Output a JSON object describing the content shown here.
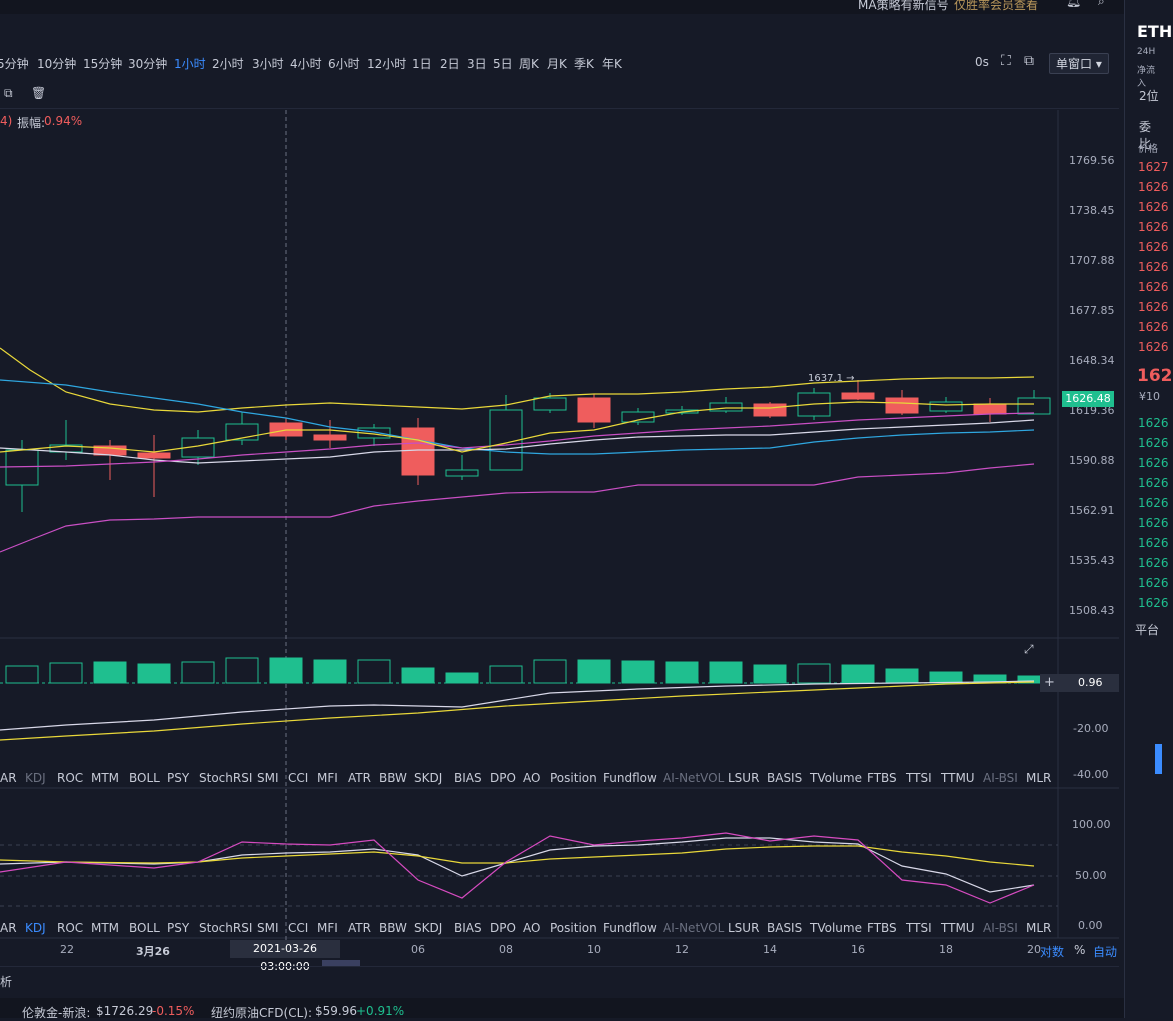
{
  "topbar": {
    "notice": "MA策略有新信号",
    "notice_link": "仅胜率会员查看"
  },
  "timeframes": [
    {
      "label": "5分钟",
      "active": false
    },
    {
      "label": "10分钟",
      "active": false
    },
    {
      "label": "15分钟",
      "active": false
    },
    {
      "label": "30分钟",
      "active": false
    },
    {
      "label": "1小时",
      "active": true
    },
    {
      "label": "2小时",
      "active": false
    },
    {
      "label": "3小时",
      "active": false
    },
    {
      "label": "4小时",
      "active": false
    },
    {
      "label": "6小时",
      "active": false
    },
    {
      "label": "12小时",
      "active": false
    },
    {
      "label": "1日",
      "active": false
    },
    {
      "label": "2日",
      "active": false
    },
    {
      "label": "3日",
      "active": false
    },
    {
      "label": "5日",
      "active": false
    },
    {
      "label": "周K",
      "active": false
    },
    {
      "label": "月K",
      "active": false
    },
    {
      "label": "季K",
      "active": false
    },
    {
      "label": "年K",
      "active": false
    }
  ],
  "toolbar": {
    "countdown": "0s",
    "window_mode": "单窗口"
  },
  "main_chart": {
    "info_prefix": "4)",
    "amplitude_label": "振幅:",
    "amplitude_value": "0.94%",
    "price_axis": [
      "1769.56",
      "1738.45",
      "1707.88",
      "1677.85",
      "1648.34",
      "1619.36",
      "1590.88",
      "1562.91",
      "1535.43",
      "1508.43"
    ],
    "last_price": "1626.48",
    "high_marker": "1637.1 →"
  },
  "volume_panel": {
    "value": "0.96",
    "axis": [
      "-20.00",
      "-40.00"
    ]
  },
  "indicators": [
    {
      "label": "AR",
      "state": "normal"
    },
    {
      "label": "KDJ",
      "state": "dim"
    },
    {
      "label": "ROC",
      "state": "normal"
    },
    {
      "label": "MTM",
      "state": "normal"
    },
    {
      "label": "BOLL",
      "state": "normal"
    },
    {
      "label": "PSY",
      "state": "normal"
    },
    {
      "label": "StochRSI",
      "state": "normal"
    },
    {
      "label": "SMI",
      "state": "normal"
    },
    {
      "label": "CCI",
      "state": "normal"
    },
    {
      "label": "MFI",
      "state": "normal"
    },
    {
      "label": "ATR",
      "state": "normal"
    },
    {
      "label": "BBW",
      "state": "normal"
    },
    {
      "label": "SKDJ",
      "state": "normal"
    },
    {
      "label": "BIAS",
      "state": "normal"
    },
    {
      "label": "DPO",
      "state": "normal"
    },
    {
      "label": "AO",
      "state": "normal"
    },
    {
      "label": "Position",
      "state": "normal"
    },
    {
      "label": "Fundflow",
      "state": "normal"
    },
    {
      "label": "AI-NetVOL",
      "state": "dim"
    },
    {
      "label": "LSUR",
      "state": "normal"
    },
    {
      "label": "BASIS",
      "state": "normal"
    },
    {
      "label": "TVolume",
      "state": "normal"
    },
    {
      "label": "FTBS",
      "state": "normal"
    },
    {
      "label": "TTSI",
      "state": "normal"
    },
    {
      "label": "TTMU",
      "state": "normal"
    },
    {
      "label": "AI-BSI",
      "state": "dim"
    },
    {
      "label": "MLR",
      "state": "normal"
    }
  ],
  "indicators2": [
    {
      "label": "AR",
      "state": "normal"
    },
    {
      "label": "KDJ",
      "state": "active"
    },
    {
      "label": "ROC",
      "state": "normal"
    },
    {
      "label": "MTM",
      "state": "normal"
    },
    {
      "label": "BOLL",
      "state": "normal"
    },
    {
      "label": "PSY",
      "state": "normal"
    },
    {
      "label": "StochRSI",
      "state": "normal"
    },
    {
      "label": "SMI",
      "state": "normal"
    },
    {
      "label": "CCI",
      "state": "normal"
    },
    {
      "label": "MFI",
      "state": "normal"
    },
    {
      "label": "ATR",
      "state": "normal"
    },
    {
      "label": "BBW",
      "state": "normal"
    },
    {
      "label": "SKDJ",
      "state": "normal"
    },
    {
      "label": "BIAS",
      "state": "normal"
    },
    {
      "label": "DPO",
      "state": "normal"
    },
    {
      "label": "AO",
      "state": "normal"
    },
    {
      "label": "Position",
      "state": "normal"
    },
    {
      "label": "Fundflow",
      "state": "normal"
    },
    {
      "label": "AI-NetVOL",
      "state": "dim"
    },
    {
      "label": "LSUR",
      "state": "normal"
    },
    {
      "label": "BASIS",
      "state": "normal"
    },
    {
      "label": "TVolume",
      "state": "normal"
    },
    {
      "label": "FTBS",
      "state": "normal"
    },
    {
      "label": "TTSI",
      "state": "normal"
    },
    {
      "label": "TTMU",
      "state": "normal"
    },
    {
      "label": "AI-BSI",
      "state": "dim"
    },
    {
      "label": "MLR",
      "state": "normal"
    }
  ],
  "kdj_panel": {
    "axis": [
      "100.00",
      "50.00",
      "0.00"
    ]
  },
  "time_axis": {
    "labels": [
      "22",
      "3月26",
      "06",
      "08",
      "10",
      "12",
      "14",
      "16",
      "18",
      "20"
    ],
    "crosshair_time": "2021-03-26 03:00:00",
    "log_label": "对数",
    "pct_label": "%",
    "auto_label": "自动"
  },
  "status_left": "析",
  "bottom": [
    {
      "name": "伦敦金-新浪:",
      "price": "$1726.29",
      "change": "-0.15%",
      "dir": "down"
    },
    {
      "name": "纽约原油CFD(CL):",
      "price": "$59.96",
      "change": "+0.91%",
      "dir": "up"
    }
  ],
  "right_panel": {
    "symbol": "ETH",
    "sub1": "24H",
    "sub2": "净流入",
    "depth_label": "2位",
    "tab_label": "委比",
    "col_label": "价格",
    "current_price": "162",
    "usd_price": "¥10",
    "asks": [
      "1627",
      "1626",
      "1626",
      "1626",
      "1626",
      "1626",
      "1626",
      "1626",
      "1626",
      "1626"
    ],
    "bids": [
      "1626",
      "1626",
      "1626",
      "1626",
      "1626",
      "1626",
      "1626",
      "1626",
      "1626",
      "1626"
    ],
    "platform_label": "平台"
  },
  "colors": {
    "up": "#1fbf8f",
    "down": "#ef5d5d",
    "accent": "#3b8cff",
    "bg": "#161a27"
  }
}
